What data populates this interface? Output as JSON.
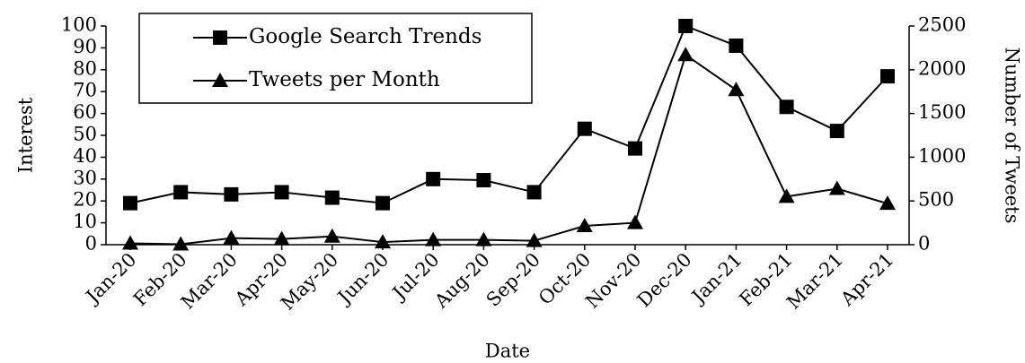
{
  "chart_data": {
    "type": "line",
    "x_label": "Date",
    "y_label": "Interest",
    "y2_label": "Number of Tweets",
    "categories": [
      "Jan-20",
      "Feb-20",
      "Mar-20",
      "Apr-20",
      "May-20",
      "Jun-20",
      "Jul-20",
      "Aug-20",
      "Sep-20",
      "Oct-20",
      "Nov-20",
      "Dec-20",
      "Jan-21",
      "Feb-21",
      "Mar-21",
      "Apr-21"
    ],
    "series": [
      {
        "name": "Google Search Trends",
        "color": "#000000",
        "marker": "square",
        "values": [
          19,
          24,
          23,
          24,
          21.5,
          19,
          30,
          29.5,
          24,
          53,
          44,
          100,
          91,
          63,
          52,
          77
        ]
      },
      {
        "name": "Tweets per Month",
        "color": "#000000",
        "marker": "triangle",
        "axis": "y2",
        "values": [
          15,
          5,
          75,
          65,
          95,
          30,
          55,
          55,
          45,
          215,
          250,
          2170,
          1770,
          550,
          640,
          470
        ]
      }
    ],
    "ylim": [
      0,
      100
    ],
    "yticks": [
      0,
      10,
      20,
      30,
      40,
      50,
      60,
      70,
      80,
      90,
      100
    ],
    "y2lim": [
      0,
      2500
    ],
    "y2ticks": [
      0,
      500,
      1000,
      1500,
      2000,
      2500
    ],
    "legend": "upper left"
  }
}
